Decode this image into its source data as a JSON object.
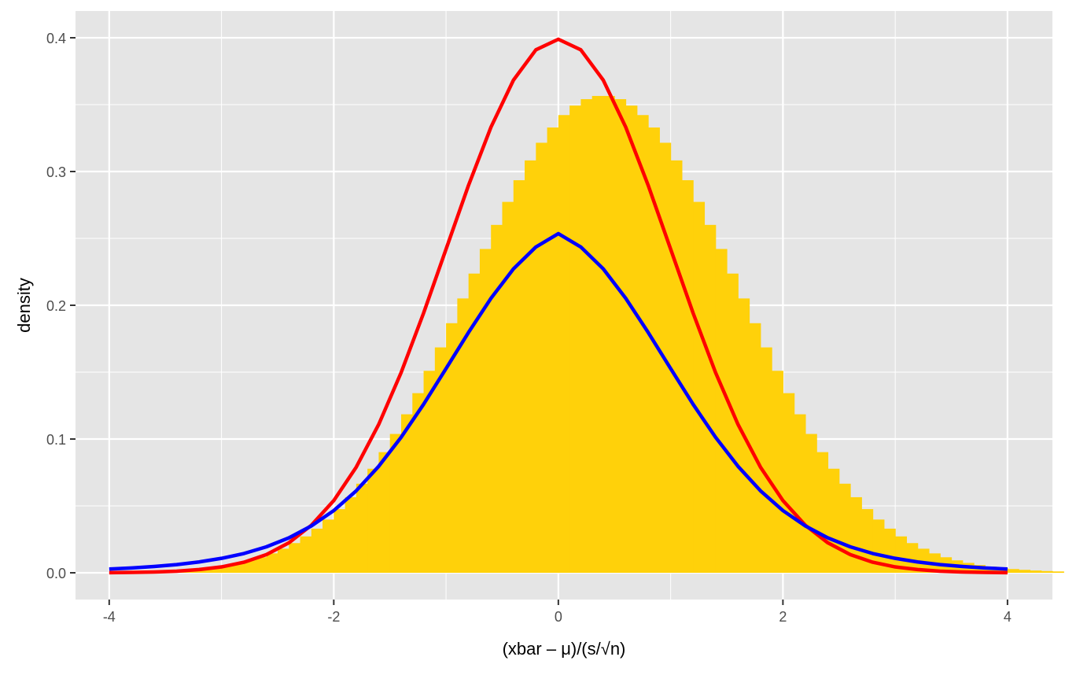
{
  "chart_data": {
    "type": "area",
    "title": "",
    "xlabel": "(xbar – μ)/(s/√n)",
    "ylabel": "density",
    "xlim": [
      -4.3,
      4.4
    ],
    "ylim": [
      -0.02,
      0.42
    ],
    "x_ticks": [
      -4,
      -2,
      0,
      2,
      4
    ],
    "x_tick_labels": [
      "-4",
      "-2",
      "0",
      "2",
      "4"
    ],
    "y_ticks": [
      0.0,
      0.1,
      0.2,
      0.3,
      0.4
    ],
    "y_tick_labels": [
      "0.0",
      "0.1",
      "0.2",
      "0.3",
      "0.4"
    ],
    "grid": true,
    "legend": "none",
    "histogram": {
      "color": "#FFD10A",
      "bin_width": 0.1,
      "x_start": -3.7,
      "values": [
        0.001,
        0.0013,
        0.0017,
        0.0022,
        0.0028,
        0.0036,
        0.0046,
        0.0058,
        0.0074,
        0.0093,
        0.0116,
        0.0145,
        0.018,
        0.0222,
        0.0272,
        0.033,
        0.0398,
        0.0476,
        0.0565,
        0.0666,
        0.0778,
        0.0902,
        0.1038,
        0.1185,
        0.1343,
        0.151,
        0.1685,
        0.1866,
        0.2051,
        0.2237,
        0.2421,
        0.2601,
        0.2773,
        0.2935,
        0.3083,
        0.3215,
        0.3329,
        0.3422,
        0.3493,
        0.3541,
        0.3565,
        0.3565,
        0.3541,
        0.3493,
        0.3422,
        0.3329,
        0.3215,
        0.3083,
        0.2935,
        0.2773,
        0.2601,
        0.2421,
        0.2237,
        0.2051,
        0.1866,
        0.1685,
        0.151,
        0.1343,
        0.1185,
        0.1038,
        0.0902,
        0.0778,
        0.0666,
        0.0565,
        0.0476,
        0.0398,
        0.033,
        0.0272,
        0.0222,
        0.018,
        0.0145,
        0.0116,
        0.0093,
        0.0074,
        0.0058,
        0.0046,
        0.0036,
        0.0028,
        0.0022,
        0.0017,
        0.0013,
        0.001
      ]
    },
    "series": [
      {
        "color": "#FF0000",
        "x": [
          -4.0,
          -3.8,
          -3.6,
          -3.4,
          -3.2,
          -3.0,
          -2.8,
          -2.6,
          -2.4,
          -2.2,
          -2.0,
          -1.8,
          -1.6,
          -1.4,
          -1.2,
          -1.0,
          -0.8,
          -0.6,
          -0.4,
          -0.2,
          0.0,
          0.2,
          0.4,
          0.6,
          0.8,
          1.0,
          1.2,
          1.4,
          1.6,
          1.8,
          2.0,
          2.2,
          2.4,
          2.6,
          2.8,
          3.0,
          3.2,
          3.4,
          3.6,
          3.8,
          4.0
        ],
        "y": [
          0.0001,
          0.0003,
          0.0006,
          0.0012,
          0.0024,
          0.0044,
          0.0079,
          0.0136,
          0.0224,
          0.0355,
          0.054,
          0.079,
          0.1109,
          0.1497,
          0.1942,
          0.242,
          0.2897,
          0.3332,
          0.3683,
          0.391,
          0.3989,
          0.391,
          0.3683,
          0.3332,
          0.2897,
          0.242,
          0.1942,
          0.1497,
          0.1109,
          0.079,
          0.054,
          0.0355,
          0.0224,
          0.0136,
          0.0079,
          0.0044,
          0.0024,
          0.0012,
          0.0006,
          0.0003,
          0.0001
        ]
      },
      {
        "color": "#0000FF",
        "x": [
          -4.0,
          -3.8,
          -3.6,
          -3.4,
          -3.2,
          -3.0,
          -2.8,
          -2.6,
          -2.4,
          -2.2,
          -2.0,
          -1.8,
          -1.6,
          -1.4,
          -1.2,
          -1.0,
          -0.8,
          -0.6,
          -0.4,
          -0.2,
          0.0,
          0.2,
          0.4,
          0.6,
          0.8,
          1.0,
          1.2,
          1.4,
          1.6,
          1.8,
          2.0,
          2.2,
          2.4,
          2.6,
          2.8,
          3.0,
          3.2,
          3.4,
          3.6,
          3.8,
          4.0
        ],
        "y": [
          0.0028,
          0.0036,
          0.0047,
          0.0061,
          0.0081,
          0.0108,
          0.0144,
          0.0194,
          0.0261,
          0.035,
          0.0465,
          0.0613,
          0.0796,
          0.1013,
          0.126,
          0.1527,
          0.1797,
          0.2052,
          0.2272,
          0.2436,
          0.2536,
          0.2436,
          0.2272,
          0.2052,
          0.1797,
          0.1527,
          0.126,
          0.1013,
          0.0796,
          0.0613,
          0.0465,
          0.035,
          0.0261,
          0.0194,
          0.0144,
          0.0108,
          0.0081,
          0.0061,
          0.0047,
          0.0036,
          0.0028
        ]
      }
    ],
    "colors": {
      "panel_background": "#E5E5E5",
      "grid": "#FFFFFF",
      "tick_text": "#4D4D4D",
      "axis_title": "#000000"
    }
  }
}
